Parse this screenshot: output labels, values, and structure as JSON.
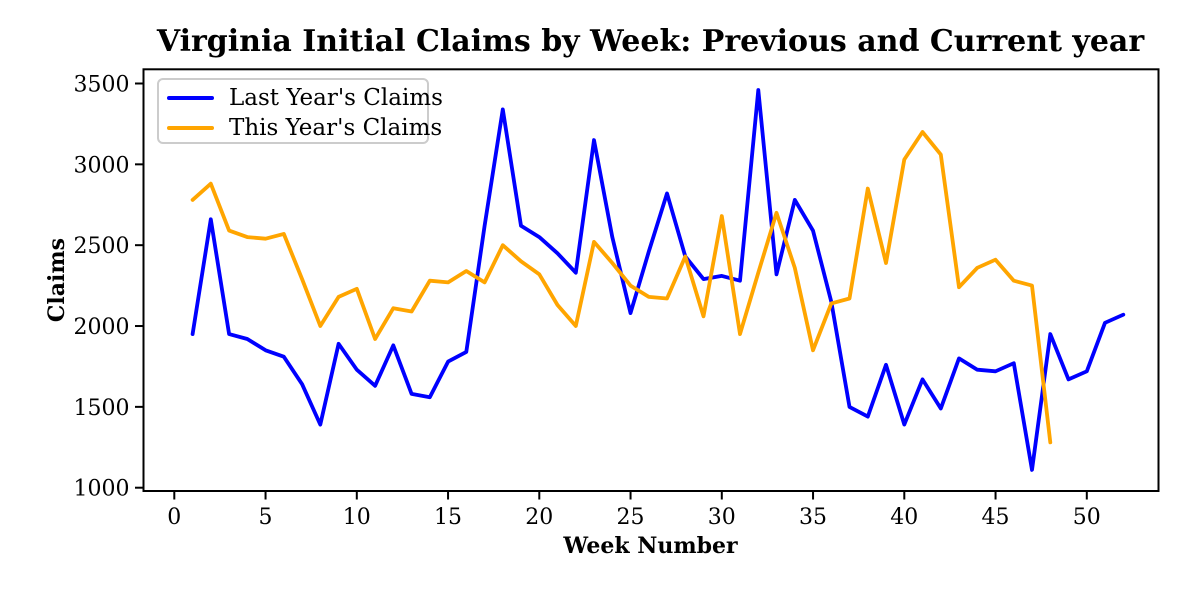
{
  "title": "Virginia Initial Claims by Week: Previous and Current year",
  "colors": {
    "last_year": "#0000ff",
    "this_year": "#ffa500",
    "axis": "#000000",
    "text": "#000000",
    "legend_border": "#cccccc",
    "background": "#ffffff"
  },
  "axes": {
    "xlabel": "Week Number",
    "ylabel": "Claims",
    "x_ticks": [
      0,
      5,
      10,
      15,
      20,
      25,
      30,
      35,
      40,
      45,
      50
    ],
    "y_ticks": [
      1000,
      1500,
      2000,
      2500,
      3000,
      3500
    ]
  },
  "legend": {
    "entries": [
      {
        "label": "Last Year's Claims",
        "color": "#0000ff"
      },
      {
        "label": "This Year's Claims",
        "color": "#ffa500"
      }
    ]
  },
  "chart_data": {
    "type": "line",
    "title": "Virginia Initial Claims by Week: Previous and Current year",
    "xlabel": "Week Number",
    "ylabel": "Claims",
    "xlim": [
      -1.7,
      53.9
    ],
    "ylim": [
      980,
      3590
    ],
    "grid": false,
    "legend_position": "upper left",
    "series": [
      {
        "name": "Last Year's Claims",
        "color": "#0000ff",
        "x": [
          1,
          2,
          3,
          4,
          5,
          6,
          7,
          8,
          9,
          10,
          11,
          12,
          13,
          14,
          15,
          16,
          17,
          18,
          19,
          20,
          21,
          22,
          23,
          24,
          25,
          26,
          27,
          28,
          29,
          30,
          31,
          32,
          33,
          34,
          35,
          36,
          37,
          38,
          39,
          40,
          41,
          42,
          43,
          44,
          45,
          46,
          47,
          48,
          49,
          50,
          51,
          52
        ],
        "values": [
          1950,
          2660,
          1950,
          1920,
          1850,
          1810,
          1640,
          1390,
          1890,
          1730,
          1630,
          1880,
          1580,
          1560,
          1780,
          1840,
          2620,
          3340,
          2620,
          2550,
          2450,
          2330,
          3150,
          2550,
          2080,
          2460,
          2820,
          2430,
          2290,
          2310,
          2280,
          3460,
          2320,
          2780,
          2590,
          2150,
          1500,
          1440,
          1760,
          1390,
          1670,
          1490,
          1800,
          1730,
          1720,
          1770,
          1110,
          1950,
          1670,
          1720,
          2020,
          2070
        ]
      },
      {
        "name": "This Year's Claims",
        "color": "#ffa500",
        "x": [
          1,
          2,
          3,
          4,
          5,
          6,
          7,
          8,
          9,
          10,
          11,
          12,
          13,
          14,
          15,
          16,
          17,
          18,
          19,
          20,
          21,
          22,
          23,
          24,
          25,
          26,
          27,
          28,
          29,
          30,
          31,
          32,
          33,
          34,
          35,
          36,
          37,
          38,
          39,
          40,
          41,
          42,
          43,
          44,
          45,
          46,
          47,
          48
        ],
        "values": [
          2780,
          2880,
          2590,
          2550,
          2540,
          2570,
          2290,
          2000,
          2180,
          2230,
          1920,
          2110,
          2090,
          2280,
          2270,
          2340,
          2270,
          2500,
          2400,
          2320,
          2130,
          2000,
          2520,
          2390,
          2250,
          2180,
          2170,
          2430,
          2060,
          2680,
          1950,
          2330,
          2700,
          2360,
          1850,
          2140,
          2170,
          2850,
          2390,
          3030,
          3200,
          3060,
          2240,
          2360,
          2410,
          2280,
          2250,
          1280
        ]
      }
    ]
  }
}
